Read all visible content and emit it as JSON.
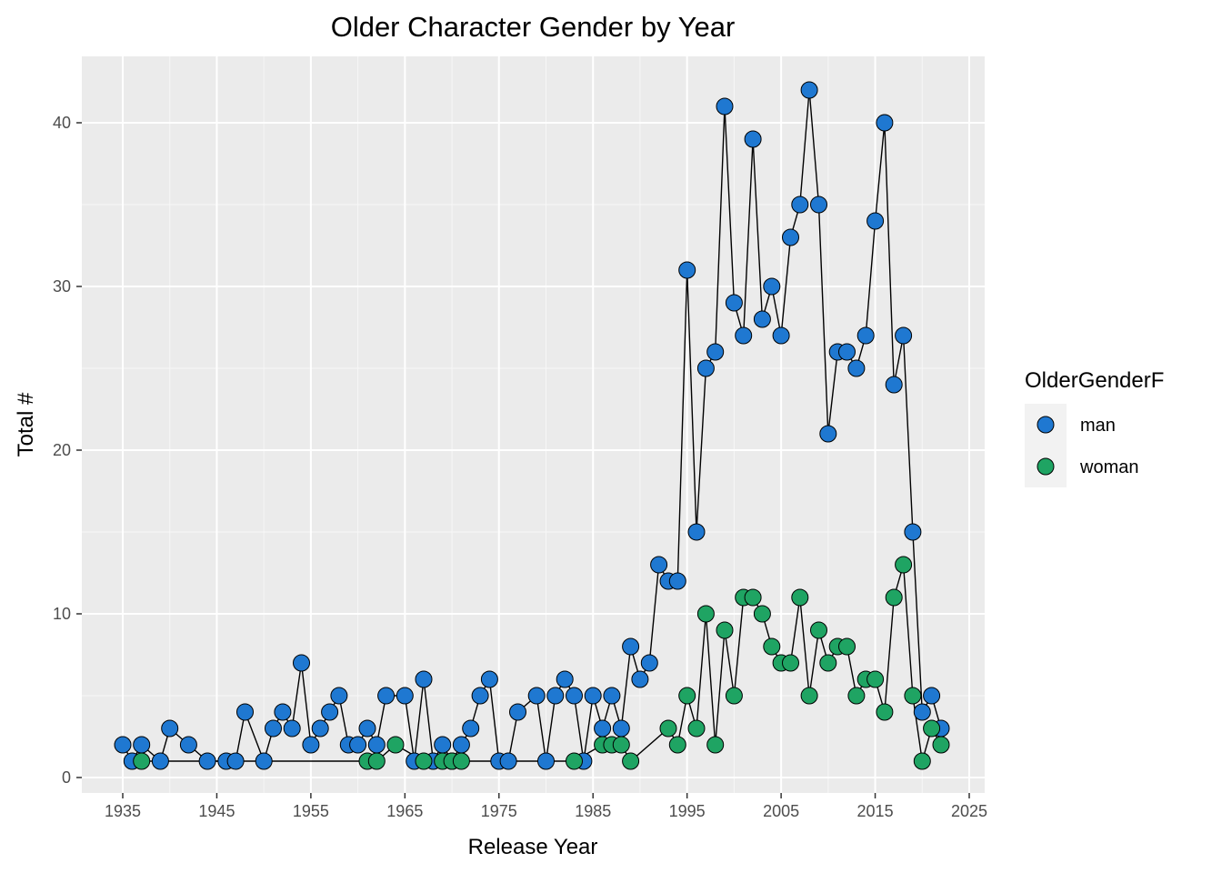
{
  "chart_data": {
    "type": "line",
    "title": "Older Character Gender by Year",
    "xlabel": "Release Year",
    "ylabel": "Total #",
    "xlim": [
      1933,
      2025
    ],
    "ylim": [
      -1,
      42
    ],
    "x_ticks": [
      1935,
      1945,
      1955,
      1965,
      1975,
      1985,
      1995,
      2005,
      2015,
      2025
    ],
    "y_ticks": [
      0,
      10,
      20,
      30,
      40
    ],
    "grid": true,
    "legend": {
      "title": "OlderGenderF",
      "position": "right"
    },
    "series": [
      {
        "name": "man",
        "color": "#1f78d1",
        "points": [
          [
            1935,
            2
          ],
          [
            1936,
            1
          ],
          [
            1937,
            2
          ],
          [
            1939,
            1
          ],
          [
            1940,
            3
          ],
          [
            1942,
            2
          ],
          [
            1944,
            1
          ],
          [
            1946,
            1
          ],
          [
            1947,
            1
          ],
          [
            1948,
            4
          ],
          [
            1950,
            1
          ],
          [
            1951,
            3
          ],
          [
            1952,
            4
          ],
          [
            1953,
            3
          ],
          [
            1954,
            7
          ],
          [
            1955,
            2
          ],
          [
            1956,
            3
          ],
          [
            1957,
            4
          ],
          [
            1958,
            5
          ],
          [
            1959,
            2
          ],
          [
            1960,
            2
          ],
          [
            1961,
            3
          ],
          [
            1962,
            2
          ],
          [
            1963,
            5
          ],
          [
            1965,
            5
          ],
          [
            1966,
            1
          ],
          [
            1967,
            6
          ],
          [
            1968,
            1
          ],
          [
            1969,
            2
          ],
          [
            1970,
            1
          ],
          [
            1971,
            2
          ],
          [
            1972,
            3
          ],
          [
            1973,
            5
          ],
          [
            1974,
            6
          ],
          [
            1975,
            1
          ],
          [
            1976,
            1
          ],
          [
            1977,
            4
          ],
          [
            1979,
            5
          ],
          [
            1980,
            1
          ],
          [
            1981,
            5
          ],
          [
            1982,
            6
          ],
          [
            1983,
            5
          ],
          [
            1984,
            1
          ],
          [
            1985,
            5
          ],
          [
            1986,
            3
          ],
          [
            1987,
            5
          ],
          [
            1988,
            3
          ],
          [
            1989,
            8
          ],
          [
            1990,
            6
          ],
          [
            1991,
            7
          ],
          [
            1992,
            13
          ],
          [
            1993,
            12
          ],
          [
            1994,
            12
          ],
          [
            1995,
            31
          ],
          [
            1996,
            15
          ],
          [
            1997,
            25
          ],
          [
            1998,
            26
          ],
          [
            1999,
            41
          ],
          [
            2000,
            29
          ],
          [
            2001,
            27
          ],
          [
            2002,
            39
          ],
          [
            2003,
            28
          ],
          [
            2004,
            30
          ],
          [
            2005,
            27
          ],
          [
            2006,
            33
          ],
          [
            2007,
            35
          ],
          [
            2008,
            42
          ],
          [
            2009,
            35
          ],
          [
            2010,
            21
          ],
          [
            2011,
            26
          ],
          [
            2012,
            26
          ],
          [
            2013,
            25
          ],
          [
            2014,
            27
          ],
          [
            2015,
            34
          ],
          [
            2016,
            40
          ],
          [
            2017,
            24
          ],
          [
            2018,
            27
          ],
          [
            2019,
            15
          ],
          [
            2020,
            4
          ],
          [
            2021,
            5
          ],
          [
            2022,
            3
          ]
        ]
      },
      {
        "name": "woman",
        "color": "#1fa463",
        "points": [
          [
            1937,
            1
          ],
          [
            1961,
            1
          ],
          [
            1962,
            1
          ],
          [
            1964,
            2
          ],
          [
            1967,
            1
          ],
          [
            1969,
            1
          ],
          [
            1970,
            1
          ],
          [
            1971,
            1
          ],
          [
            1983,
            1
          ],
          [
            1986,
            2
          ],
          [
            1987,
            2
          ],
          [
            1988,
            2
          ],
          [
            1989,
            1
          ],
          [
            1993,
            3
          ],
          [
            1994,
            2
          ],
          [
            1995,
            5
          ],
          [
            1996,
            3
          ],
          [
            1997,
            10
          ],
          [
            1998,
            2
          ],
          [
            1999,
            9
          ],
          [
            2000,
            5
          ],
          [
            2001,
            11
          ],
          [
            2002,
            11
          ],
          [
            2003,
            10
          ],
          [
            2004,
            8
          ],
          [
            2005,
            7
          ],
          [
            2006,
            7
          ],
          [
            2007,
            11
          ],
          [
            2008,
            5
          ],
          [
            2009,
            9
          ],
          [
            2010,
            7
          ],
          [
            2011,
            8
          ],
          [
            2012,
            8
          ],
          [
            2013,
            5
          ],
          [
            2014,
            6
          ],
          [
            2015,
            6
          ],
          [
            2016,
            4
          ],
          [
            2017,
            11
          ],
          [
            2018,
            13
          ],
          [
            2019,
            5
          ],
          [
            2020,
            1
          ],
          [
            2021,
            3
          ],
          [
            2022,
            2
          ]
        ]
      }
    ]
  }
}
